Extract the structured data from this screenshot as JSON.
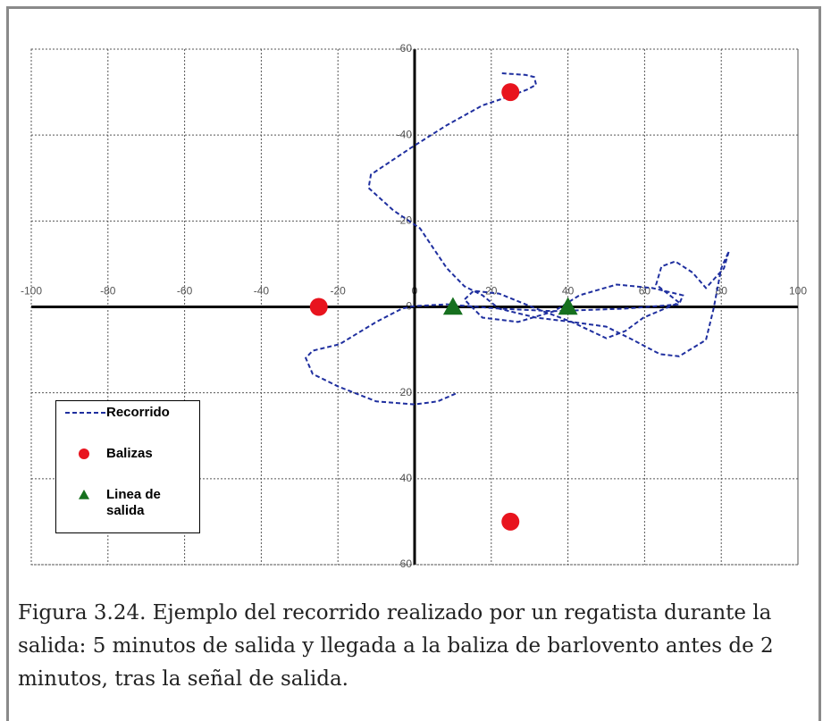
{
  "chart_data": {
    "type": "scatter",
    "xlim": [
      -100,
      100
    ],
    "xticks": [
      -100,
      -80,
      -60,
      -40,
      -20,
      0,
      20,
      40,
      60,
      80,
      100
    ],
    "ylim": [
      -60,
      60
    ],
    "yticks": [
      -60,
      -40,
      -20,
      0,
      20,
      40,
      60
    ],
    "y_inverted": true,
    "grid": true,
    "legend": "lower left",
    "series": [
      {
        "name": "Recorrido",
        "color": "#1f2f9f",
        "style": "dashed-line",
        "x": [
          10.7,
          6,
          0,
          -10,
          -20,
          -26.6,
          -28.4,
          -26.6,
          -19.6,
          -10,
          -3.3,
          0,
          8.4,
          22,
          36,
          55,
          69,
          70,
          62,
          52.7,
          43,
          36.4,
          27,
          17.7,
          13,
          15.4,
          22,
          31.7,
          41,
          50,
          55,
          59.7,
          69,
          63,
          64.4,
          68,
          72.5,
          76,
          80.7,
          82,
          80,
          78,
          76,
          69,
          64,
          57,
          50,
          41,
          31.7,
          22,
          17.7,
          13,
          8.4,
          1.4,
          -5.6,
          -12,
          -11.4,
          -1,
          8.4,
          17.7,
          24.7,
          29.4,
          31.7,
          31.2,
          29,
          22.4
        ],
        "y": [
          20.2,
          22,
          22.7,
          22,
          18.5,
          15.6,
          11.9,
          10.2,
          8.7,
          3.5,
          0.4,
          -0.2,
          -0.6,
          0.4,
          1,
          0.4,
          -0.6,
          -2.7,
          -4.4,
          -5.2,
          -2.7,
          1,
          3.5,
          2.5,
          -1.7,
          -3.75,
          -3.1,
          0.4,
          3.5,
          7.3,
          5.6,
          2.5,
          -1,
          -5.2,
          -9.4,
          -10.6,
          -8,
          -4.4,
          -9,
          -13,
          -9,
          0.4,
          7.7,
          11.5,
          11,
          7.7,
          4.6,
          3.5,
          2.5,
          0.4,
          -2.7,
          -4.8,
          -9,
          -18.3,
          -22.5,
          -27.7,
          -30.8,
          -37,
          -42.3,
          -46.9,
          -49,
          -50.6,
          -51.7,
          -53.5,
          -54,
          -54.4
        ]
      },
      {
        "name": "Balizas",
        "color": "#e8141e",
        "style": "circle",
        "x": [
          -25,
          25,
          25
        ],
        "y": [
          0,
          -50,
          50
        ]
      },
      {
        "name": "Linea de salida",
        "color": "#16701e",
        "style": "triangle",
        "x": [
          10,
          40
        ],
        "y": [
          0,
          0
        ]
      }
    ]
  },
  "caption": "Figura 3.24. Ejemplo del recorrido realizado por un regatista durante la salida: 5 minutos de salida y llegada a la baliza de barlovento antes de 2 minutos, tras la señal de salida."
}
